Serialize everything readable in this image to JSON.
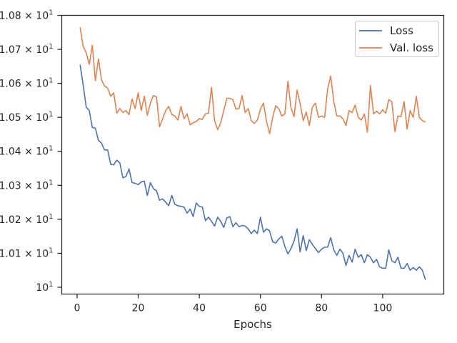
{
  "chart_data": {
    "type": "line",
    "xlabel": "Epochs",
    "ylabel": "",
    "xlim": [
      -5,
      120
    ],
    "ylim": [
      9.98,
      10.8
    ],
    "x_ticks": [
      0,
      20,
      40,
      60,
      80,
      100
    ],
    "y_ticks": [
      {
        "value": 10.0,
        "base": "10",
        "exp": "1"
      },
      {
        "value": 10.1,
        "base": "1.01 × 10",
        "exp": "1"
      },
      {
        "value": 10.2,
        "base": "1.02 × 10",
        "exp": "1"
      },
      {
        "value": 10.3,
        "base": "1.03 × 10",
        "exp": "1"
      },
      {
        "value": 10.4,
        "base": "1.04 × 10",
        "exp": "1"
      },
      {
        "value": 10.5,
        "base": "1.05 × 10",
        "exp": "1"
      },
      {
        "value": 10.6,
        "base": "1.06 × 10",
        "exp": "1"
      },
      {
        "value": 10.7,
        "base": "1.07 × 10",
        "exp": "1"
      },
      {
        "value": 10.8,
        "base": "1.08 × 10",
        "exp": "1"
      }
    ],
    "grid": false,
    "legend_position": "top-right",
    "x_start": 1,
    "series": [
      {
        "name": "Loss",
        "color": "#4c72b0",
        "values": [
          10.655,
          10.595,
          10.53,
          10.52,
          10.47,
          10.468,
          10.432,
          10.424,
          10.404,
          10.404,
          10.362,
          10.36,
          10.374,
          10.366,
          10.322,
          10.326,
          10.348,
          10.308,
          10.306,
          10.302,
          10.31,
          10.312,
          10.27,
          10.308,
          10.29,
          10.284,
          10.256,
          10.26,
          10.25,
          10.24,
          10.27,
          10.244,
          10.24,
          10.238,
          10.236,
          10.218,
          10.23,
          10.208,
          10.248,
          10.238,
          10.236,
          10.196,
          10.206,
          10.194,
          10.18,
          10.206,
          10.194,
          10.176,
          10.204,
          10.208,
          10.178,
          10.19,
          10.178,
          10.182,
          10.18,
          10.172,
          10.158,
          10.168,
          10.158,
          10.206,
          10.162,
          10.172,
          10.166,
          10.134,
          10.13,
          10.142,
          10.15,
          10.12,
          10.098,
          10.114,
          10.136,
          10.172,
          10.104,
          10.152,
          10.108,
          10.14,
          10.126,
          10.114,
          10.102,
          10.112,
          10.118,
          10.118,
          10.146,
          10.11,
          10.094,
          10.112,
          10.1,
          10.064,
          10.094,
          10.074,
          10.112,
          10.088,
          10.096,
          10.072,
          10.096,
          10.088,
          10.072,
          10.082,
          10.06,
          10.056,
          10.056,
          10.11,
          10.078,
          10.072,
          10.088,
          10.056,
          10.056,
          10.07,
          10.05,
          10.058,
          10.05,
          10.06,
          10.05,
          10.022
        ]
      },
      {
        "name": "Val. loss",
        "color": "#dd8452",
        "values": [
          10.765,
          10.708,
          10.69,
          10.656,
          10.712,
          10.608,
          10.672,
          10.61,
          10.592,
          10.586,
          10.562,
          10.572,
          10.512,
          10.526,
          10.514,
          10.52,
          10.508,
          10.554,
          10.526,
          10.572,
          10.52,
          10.562,
          10.506,
          10.542,
          10.564,
          10.56,
          10.472,
          10.496,
          10.52,
          10.532,
          10.508,
          10.504,
          10.492,
          10.532,
          10.496,
          10.51,
          10.478,
          10.484,
          10.488,
          10.496,
          10.494,
          10.51,
          10.512,
          10.588,
          10.49,
          10.464,
          10.484,
          10.52,
          10.556,
          10.556,
          10.552,
          10.524,
          10.526,
          10.564,
          10.514,
          10.526,
          10.49,
          10.482,
          10.492,
          10.524,
          10.542,
          10.488,
          10.452,
          10.5,
          10.534,
          10.526,
          10.504,
          10.51,
          10.606,
          10.528,
          10.502,
          10.58,
          10.54,
          10.49,
          10.516,
          10.476,
          10.53,
          10.542,
          10.5,
          10.504,
          10.5,
          10.584,
          10.622,
          10.546,
          10.504,
          10.504,
          10.496,
          10.476,
          10.52,
          10.514,
          10.536,
          10.5,
          10.492,
          10.51,
          10.456,
          10.594,
          10.51,
          10.518,
          10.51,
          10.522,
          10.512,
          10.552,
          10.546,
          10.458,
          10.504,
          10.502,
          10.546,
          10.466,
          10.52,
          10.5,
          10.562,
          10.5,
          10.49,
          10.486
        ]
      }
    ]
  }
}
